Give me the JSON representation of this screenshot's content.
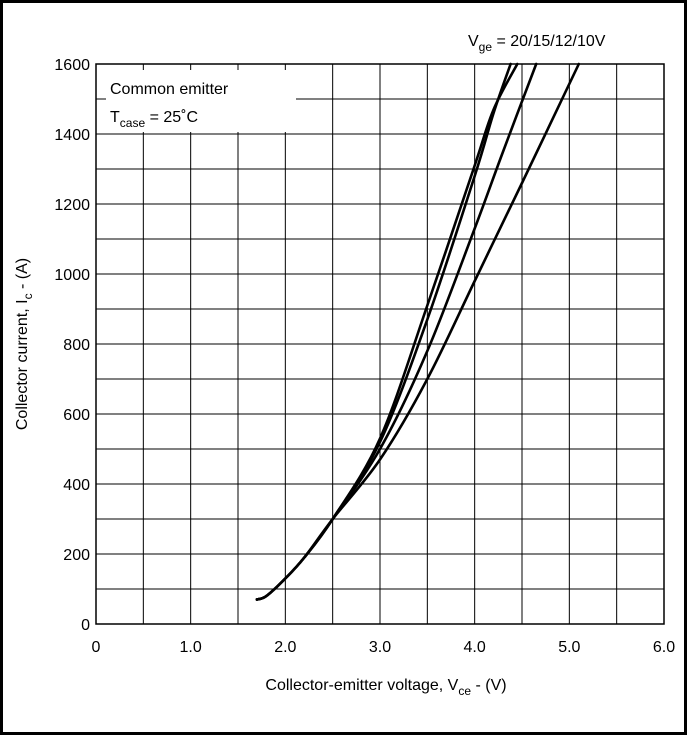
{
  "chart_data": {
    "type": "line",
    "xlabel": {
      "main": "Collector-emitter voltage, V",
      "sub": "ce",
      "suffix": " - (V)"
    },
    "ylabel": {
      "main": "Collector current, I",
      "sub": "c",
      "suffix": " - (A)"
    },
    "xlim": [
      0,
      6.0
    ],
    "ylim": [
      0,
      1600
    ],
    "x_ticks": [
      "0",
      "1.0",
      "2.0",
      "3.0",
      "4.0",
      "5.0",
      "6.0"
    ],
    "y_ticks": [
      "0",
      "200",
      "400",
      "600",
      "800",
      "1000",
      "1200",
      "1400",
      "1600"
    ],
    "grid": true,
    "legend_label": {
      "main": "V",
      "sub": "ge",
      "suffix": " = 20/15/12/10V"
    },
    "annotation": {
      "line1": "Common emitter",
      "line2_main": "T",
      "line2_sub": "case",
      "line2_suffix": " = 25˚C"
    },
    "series": [
      {
        "x": [
          1.7,
          1.8,
          2.0,
          2.2,
          2.5,
          3.0,
          3.5,
          4.0,
          4.2,
          4.45
        ],
        "y": [
          70,
          80,
          130,
          190,
          300,
          530,
          910,
          1310,
          1470,
          1600
        ]
      },
      {
        "x": [
          1.7,
          1.8,
          2.0,
          2.2,
          2.5,
          3.0,
          3.5,
          4.0,
          4.2,
          4.38
        ],
        "y": [
          70,
          80,
          130,
          190,
          300,
          520,
          870,
          1280,
          1460,
          1600
        ]
      },
      {
        "x": [
          1.7,
          1.8,
          2.0,
          2.2,
          2.5,
          3.0,
          3.5,
          4.0,
          4.3,
          4.65
        ],
        "y": [
          70,
          80,
          130,
          190,
          300,
          500,
          780,
          1130,
          1350,
          1600
        ]
      },
      {
        "x": [
          1.7,
          1.8,
          2.0,
          2.2,
          2.5,
          3.0,
          3.5,
          4.0,
          4.5,
          5.1
        ],
        "y": [
          70,
          80,
          130,
          190,
          300,
          470,
          700,
          980,
          1260,
          1600
        ]
      }
    ]
  }
}
